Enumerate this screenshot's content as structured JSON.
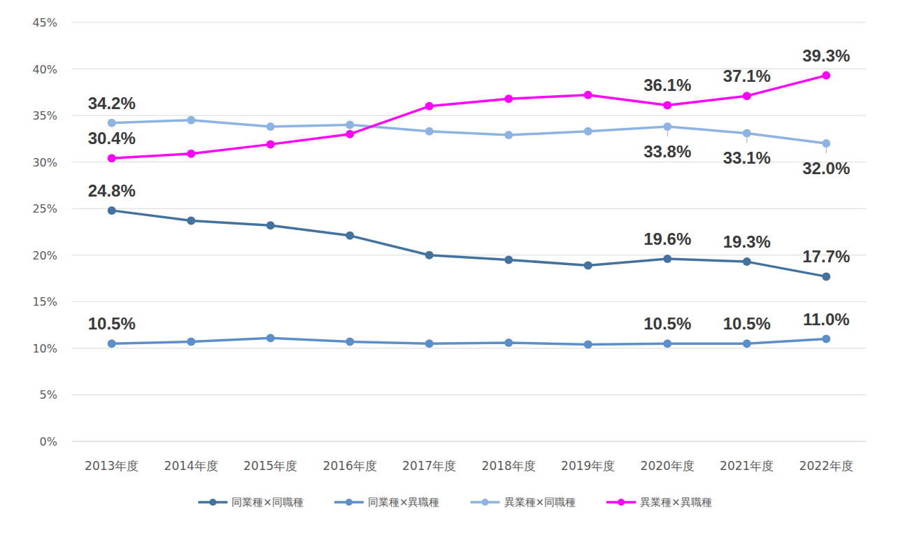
{
  "chart_data": {
    "type": "line",
    "categories": [
      "2013年度",
      "2014年度",
      "2015年度",
      "2016年度",
      "2017年度",
      "2018年度",
      "2019年度",
      "2020年度",
      "2021年度",
      "2022年度"
    ],
    "series": [
      {
        "name": "同業種×同職種",
        "color": "#44729f",
        "marker": "circle",
        "values": [
          24.8,
          23.7,
          23.2,
          22.1,
          20.0,
          19.5,
          18.9,
          19.6,
          19.3,
          17.7
        ],
        "value_labels": [
          "24.8%",
          null,
          null,
          null,
          null,
          null,
          null,
          "19.6%",
          "19.3%",
          "17.7%"
        ]
      },
      {
        "name": "同業種×異職種",
        "color": "#5b8fcb",
        "marker": "circle",
        "values": [
          10.5,
          10.7,
          11.1,
          10.7,
          10.5,
          10.6,
          10.4,
          10.5,
          10.5,
          11.0
        ],
        "value_labels": [
          "10.5%",
          null,
          null,
          null,
          null,
          null,
          null,
          "10.5%",
          "10.5%",
          "11.0%"
        ]
      },
      {
        "name": "異業種×同職種",
        "color": "#8db3e2",
        "marker": "circle",
        "values": [
          34.2,
          34.5,
          33.8,
          34.0,
          33.3,
          32.9,
          33.3,
          33.8,
          33.1,
          32.0
        ],
        "value_labels": [
          "34.2%",
          null,
          null,
          null,
          null,
          null,
          null,
          "33.8%",
          "33.1%",
          "32.0%"
        ]
      },
      {
        "name": "異業種×異職種",
        "color": "#ff00ff",
        "marker": "circle",
        "values": [
          30.4,
          30.9,
          31.9,
          33.0,
          36.0,
          36.8,
          37.2,
          36.1,
          37.1,
          39.3
        ],
        "value_labels": [
          "30.4%",
          null,
          null,
          null,
          null,
          null,
          null,
          "36.1%",
          "37.1%",
          "39.3%"
        ]
      }
    ],
    "ylim": [
      0,
      45
    ],
    "yticks": [
      {
        "value": 0,
        "label": "0%"
      },
      {
        "value": 5,
        "label": "5%"
      },
      {
        "value": 10,
        "label": "10%"
      },
      {
        "value": 15,
        "label": "15%"
      },
      {
        "value": 20,
        "label": "20%"
      },
      {
        "value": 25,
        "label": "25%"
      },
      {
        "value": 30,
        "label": "30%"
      },
      {
        "value": 35,
        "label": "35%"
      },
      {
        "value": 40,
        "label": "40%"
      },
      {
        "value": 45,
        "label": "45%"
      }
    ],
    "grid": true,
    "legend": "bottom",
    "data_labels": true
  }
}
